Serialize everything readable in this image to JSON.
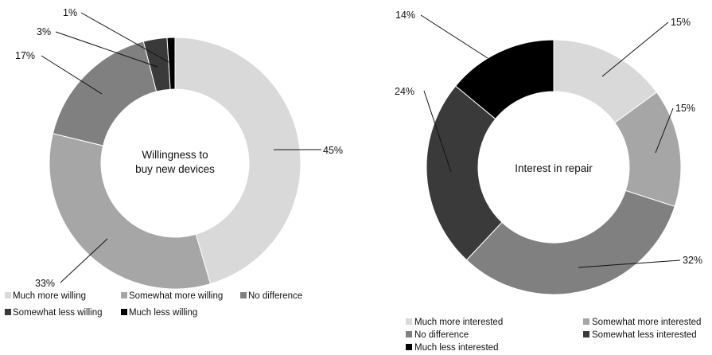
{
  "chart_data": [
    {
      "type": "pie",
      "variant": "donut",
      "center_label": [
        "Willingness to",
        "buy new devices"
      ],
      "categories": [
        "Much more willing",
        "Somewhat more willing",
        "No difference",
        "Somewhat less willing",
        "Much less willing"
      ],
      "values": [
        45,
        33,
        17,
        3,
        1
      ],
      "value_labels": [
        "45%",
        "33%",
        "17%",
        "3%",
        "1%"
      ],
      "colors": [
        "#d9d9d9",
        "#a6a6a6",
        "#808080",
        "#3a3a3a",
        "#000000"
      ],
      "legend_position": "bottom"
    },
    {
      "type": "pie",
      "variant": "donut",
      "center_label": [
        "Interest in repair"
      ],
      "categories": [
        "Much more interested",
        "Somewhat more interested",
        "No difference",
        "Somewhat less interested",
        "Much less interested"
      ],
      "values": [
        15,
        15,
        32,
        24,
        14
      ],
      "value_labels": [
        "15%",
        "15%",
        "32%",
        "24%",
        "14%"
      ],
      "colors": [
        "#d9d9d9",
        "#a6a6a6",
        "#808080",
        "#3a3a3a",
        "#000000"
      ],
      "legend_position": "bottom"
    }
  ]
}
